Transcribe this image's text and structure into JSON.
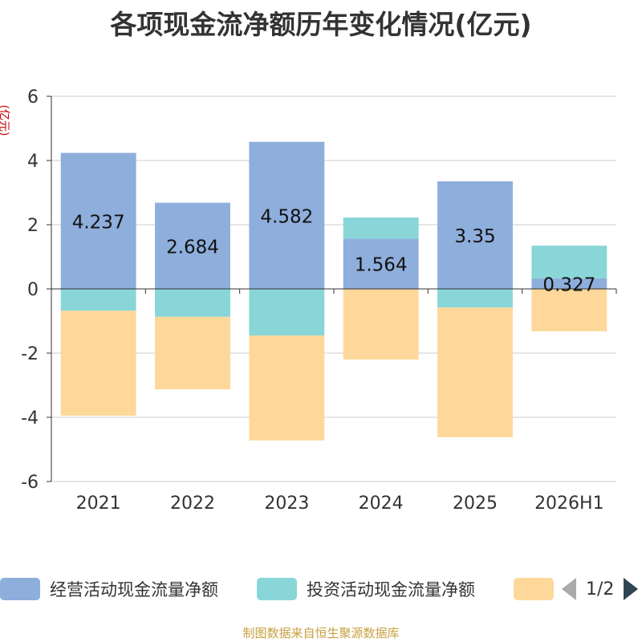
{
  "chart_data": {
    "type": "bar",
    "stacked": true,
    "title": "各项现金流净额历年变化情况(亿元)",
    "unit_label": "(亿元)",
    "categories": [
      "2021",
      "2022",
      "2023",
      "2024",
      "2025",
      "2026H1"
    ],
    "ylim": [
      -6,
      6
    ],
    "yticks": [
      -6,
      -4,
      -2,
      0,
      2,
      4,
      6
    ],
    "grid": true,
    "legend_position": "bottom",
    "series": [
      {
        "name": "经营活动现金流量净额",
        "color": "#8eaedb",
        "values": [
          4.237,
          2.684,
          4.582,
          1.564,
          3.35,
          0.327
        ],
        "labels": [
          "4.237",
          "2.684",
          "4.582",
          "1.564",
          "3.35",
          "0.327"
        ]
      },
      {
        "name": "投资活动现金流量净额",
        "color": "#88d6d8",
        "values": [
          -0.68,
          -0.87,
          -1.45,
          0.66,
          -0.58,
          1.02
        ]
      },
      {
        "name": "",
        "color": "#fed89a",
        "values": [
          -3.27,
          -2.26,
          -3.27,
          -2.2,
          -4.04,
          -1.32
        ]
      }
    ]
  },
  "legend": {
    "page": "1/2"
  },
  "footer": "制图数据来自恒生聚源数据库"
}
